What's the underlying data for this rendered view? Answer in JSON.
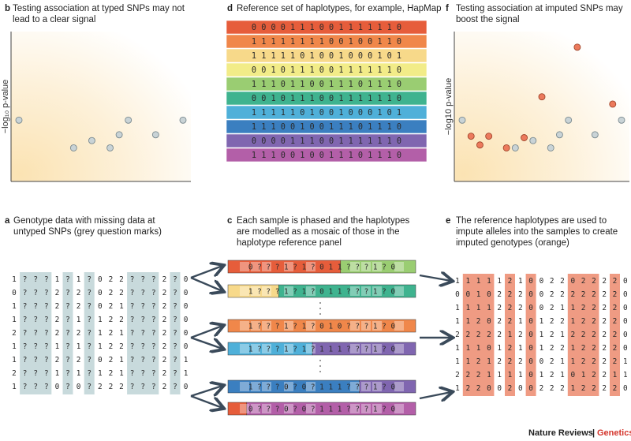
{
  "panels": {
    "b": {
      "letter": "b",
      "lines": [
        "Testing association at typed SNPs may not",
        "lead to a clear signal"
      ],
      "ylabel": "−log₁₀ p-value"
    },
    "d": {
      "letter": "d",
      "lines": [
        "Reference set of haplotypes, for example, HapMap"
      ]
    },
    "f": {
      "letter": "f",
      "lines": [
        "Testing association at imputed SNPs may",
        "boost the signal"
      ],
      "ylabel": "−log10 p-value"
    },
    "a": {
      "letter": "a",
      "lines": [
        "Genotype data with missing data at",
        "untyped SNPs (grey question marks)"
      ]
    },
    "c": {
      "letter": "c",
      "lines": [
        "Each sample is phased and the haplotypes",
        "are modelled as a mosaic of those in the",
        "haplotype reference panel"
      ]
    },
    "e": {
      "letter": "e",
      "lines": [
        "The reference haplotypes are used to",
        "impute alleles into the samples to create",
        "imputed genotypes (orange)"
      ]
    }
  },
  "plot_b": {
    "grey_points": [
      [
        0,
        4.2
      ],
      [
        3,
        2.3
      ],
      [
        4,
        2.8
      ],
      [
        5,
        2.3
      ],
      [
        5.5,
        3.2
      ],
      [
        6,
        4.2
      ],
      [
        7.5,
        3.2
      ],
      [
        9,
        4.2
      ]
    ]
  },
  "plot_f": {
    "grey_points": [
      [
        0,
        4.2
      ],
      [
        3,
        2.3
      ],
      [
        4,
        2.8
      ],
      [
        5,
        2.3
      ],
      [
        5.5,
        3.2
      ],
      [
        6,
        4.2
      ],
      [
        7.5,
        3.2
      ],
      [
        9,
        4.2
      ]
    ],
    "orange_points": [
      [
        0.5,
        3.1
      ],
      [
        1,
        2.5
      ],
      [
        1.5,
        3.1
      ],
      [
        2.5,
        2.3
      ],
      [
        3.5,
        3.0
      ],
      [
        4.5,
        5.8
      ],
      [
        6.5,
        9.2
      ],
      [
        8.5,
        5.3
      ]
    ]
  },
  "reference": {
    "rows": [
      "0 0 0 0 1 1 1 0 0 1 1 1 1 1 1 0",
      "1 1 1 1 1 1 1 1 0 0 1 0 0 1 1 0",
      "1 1 1 1 1 0 1 0 0 1 0 0 0 1 0 1",
      "0 0 1 0 1 1 1 0 0 1 1 1 1 1 1 0",
      "1 1 1 0 1 1 0 0 1 1 1 0 1 1 1 0",
      "0 0 1 0 1 1 1 0 0 1 1 1 1 1 1 0",
      "1 1 1 1 1 0 1 0 0 1 0 0 0 1 0 1",
      "1 1 1 0 0 1 0 0 1 1 1 0 1 1 1 0",
      "0 0 0 0 1 1 1 0 0 1 1 1 1 1 1 0",
      "1 1 1 0 0 1 0 0 1 1 1 0 1 1 1 0"
    ],
    "colors": [
      "#e65d3b",
      "#f0874a",
      "#f7d98a",
      "#f2ec88",
      "#9acd72",
      "#3fb38f",
      "#4fb0d9",
      "#3b7fc0",
      "#8066b0",
      "#b35fa8"
    ]
  },
  "genotypes": {
    "rows": [
      "1 ? ? ? 1 ? 1 ? 0 2 2 ? ? ? 2 ? 0",
      "0 ? ? ? 2 ? 2 ? 0 2 2 ? ? ? 2 ? 0",
      "1 ? ? ? 2 ? 2 ? 0 2 1 ? ? ? 2 ? 0",
      "1 ? ? ? 2 ? 1 ? 1 2 2 ? ? ? 2 ? 0",
      "2 ? ? ? 2 ? 2 ? 1 2 1 ? ? ? 2 ? 0",
      "1 ? ? ? 1 ? 1 ? 1 2 2 ? ? ? 2 ? 0",
      "1 ? ? ? 2 ? 2 ? 0 2 1 ? ? ? 2 ? 1",
      "2 ? ? ? 1 ? 1 ? 1 2 1 ? ? ? 2 ? 1",
      "1 ? ? ? 0 ? 0 ? 2 2 2 ? ? ? 2 ? 0"
    ]
  },
  "mosaic": {
    "bars": [
      {
        "text": "0 ? ? ? 1 ? 1 ? 0 1 1 ? ? ? 1 ? 0",
        "colors": [
          "#e65d3b",
          "#9acd72"
        ]
      },
      {
        "text": "1 ? ? ? 1 ? 1 ? 0 1 1 ? ? ? 1 ? 0",
        "colors": [
          "#f7d98a",
          "#3fb38f"
        ]
      },
      {
        "text": "1 ? ? ? 1 ? 1 ? 0 1 0 ? ? ? 1 ? 0",
        "colors": [
          "#f0874a",
          "#f0874a"
        ]
      },
      {
        "text": "1 ? ? ? 1 ? 1 ? 1 1 1 ? ? ? 1 ? 0",
        "colors": [
          "#4fb0d9",
          "#8066b0"
        ]
      },
      {
        "text": "1 ? ? ? 0 ? 0 ? 1 1 1 ? ? ? 1 ? 0",
        "colors": [
          "#3b7fc0",
          "#8066b0"
        ]
      },
      {
        "text": "0 ? ? ? 0 ? 0 ? 1 1 1 ? ? ? 1 ? 0",
        "colors": [
          "#e65d3b",
          "#b35fa8"
        ]
      }
    ]
  },
  "imputed": {
    "rows": [
      "1 1 1 1 1 2 1 0 0 2 2 0 2 2 2 2 0",
      "0 0 1 0 2 2 2 0 0 2 2 2 2 2 2 2 0",
      "1 1 1 1 2 2 2 0 0 2 1 1 2 2 2 2 0",
      "1 1 2 0 2 2 1 0 1 2 2 1 2 2 2 2 0",
      "2 2 2 2 2 1 2 0 1 2 1 2 2 2 2 2 0",
      "1 1 1 0 1 2 1 0 1 2 2 1 2 2 2 2 0",
      "1 1 2 1 2 2 2 0 0 2 1 1 2 2 2 2 1",
      "2 2 2 1 1 1 1 0 1 2 1 0 1 2 2 1 1",
      "1 2 2 0 0 2 0 0 2 2 2 1 2 2 2 2 0"
    ]
  },
  "footer": {
    "journal": "Nature Reviews",
    "separator": "|",
    "section": "Genetics",
    "section_color": "#d4342b"
  },
  "colors": {
    "shade": "#c8dadc",
    "imputed": "#ef9b83",
    "grey_point": "#c9d3d6",
    "orange_point": "#ec7a5c"
  }
}
